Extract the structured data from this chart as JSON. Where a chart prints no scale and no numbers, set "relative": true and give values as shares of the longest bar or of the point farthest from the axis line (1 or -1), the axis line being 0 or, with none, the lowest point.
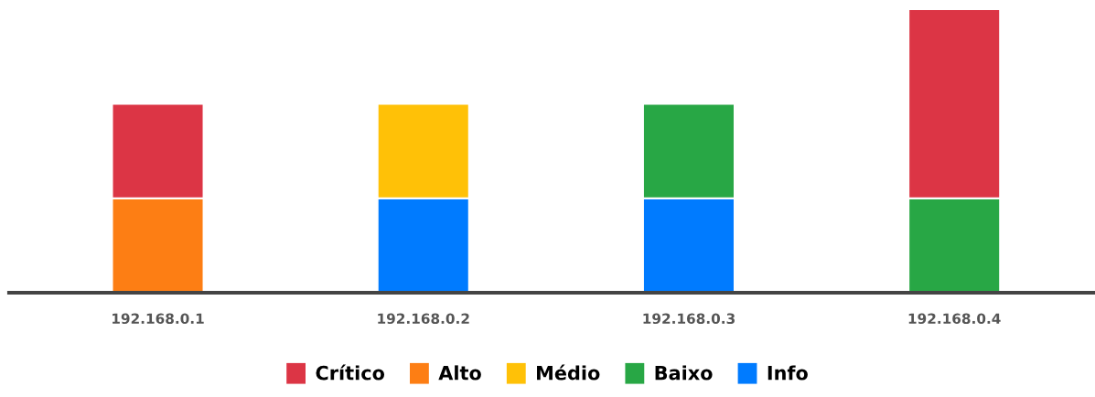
{
  "chart_data": {
    "type": "bar",
    "stacked": true,
    "relative": true,
    "categories": [
      "192.168.0.1",
      "192.168.0.2",
      "192.168.0.3",
      "192.168.0.4"
    ],
    "series": [
      {
        "name": "Info",
        "color": "#007bff",
        "values": [
          null,
          0.333,
          0.333,
          null
        ]
      },
      {
        "name": "Baixo",
        "color": "#28a745",
        "values": [
          null,
          null,
          0.333,
          0.333
        ]
      },
      {
        "name": "Médio",
        "color": "#ffc107",
        "values": [
          null,
          0.333,
          null,
          null
        ]
      },
      {
        "name": "Alto",
        "color": "#fd7e14",
        "values": [
          0.333,
          null,
          null,
          null
        ]
      },
      {
        "name": "Crítico",
        "color": "#dc3545",
        "values": [
          0.333,
          null,
          null,
          0.667
        ]
      }
    ],
    "legend": "bottom",
    "grid": false
  }
}
